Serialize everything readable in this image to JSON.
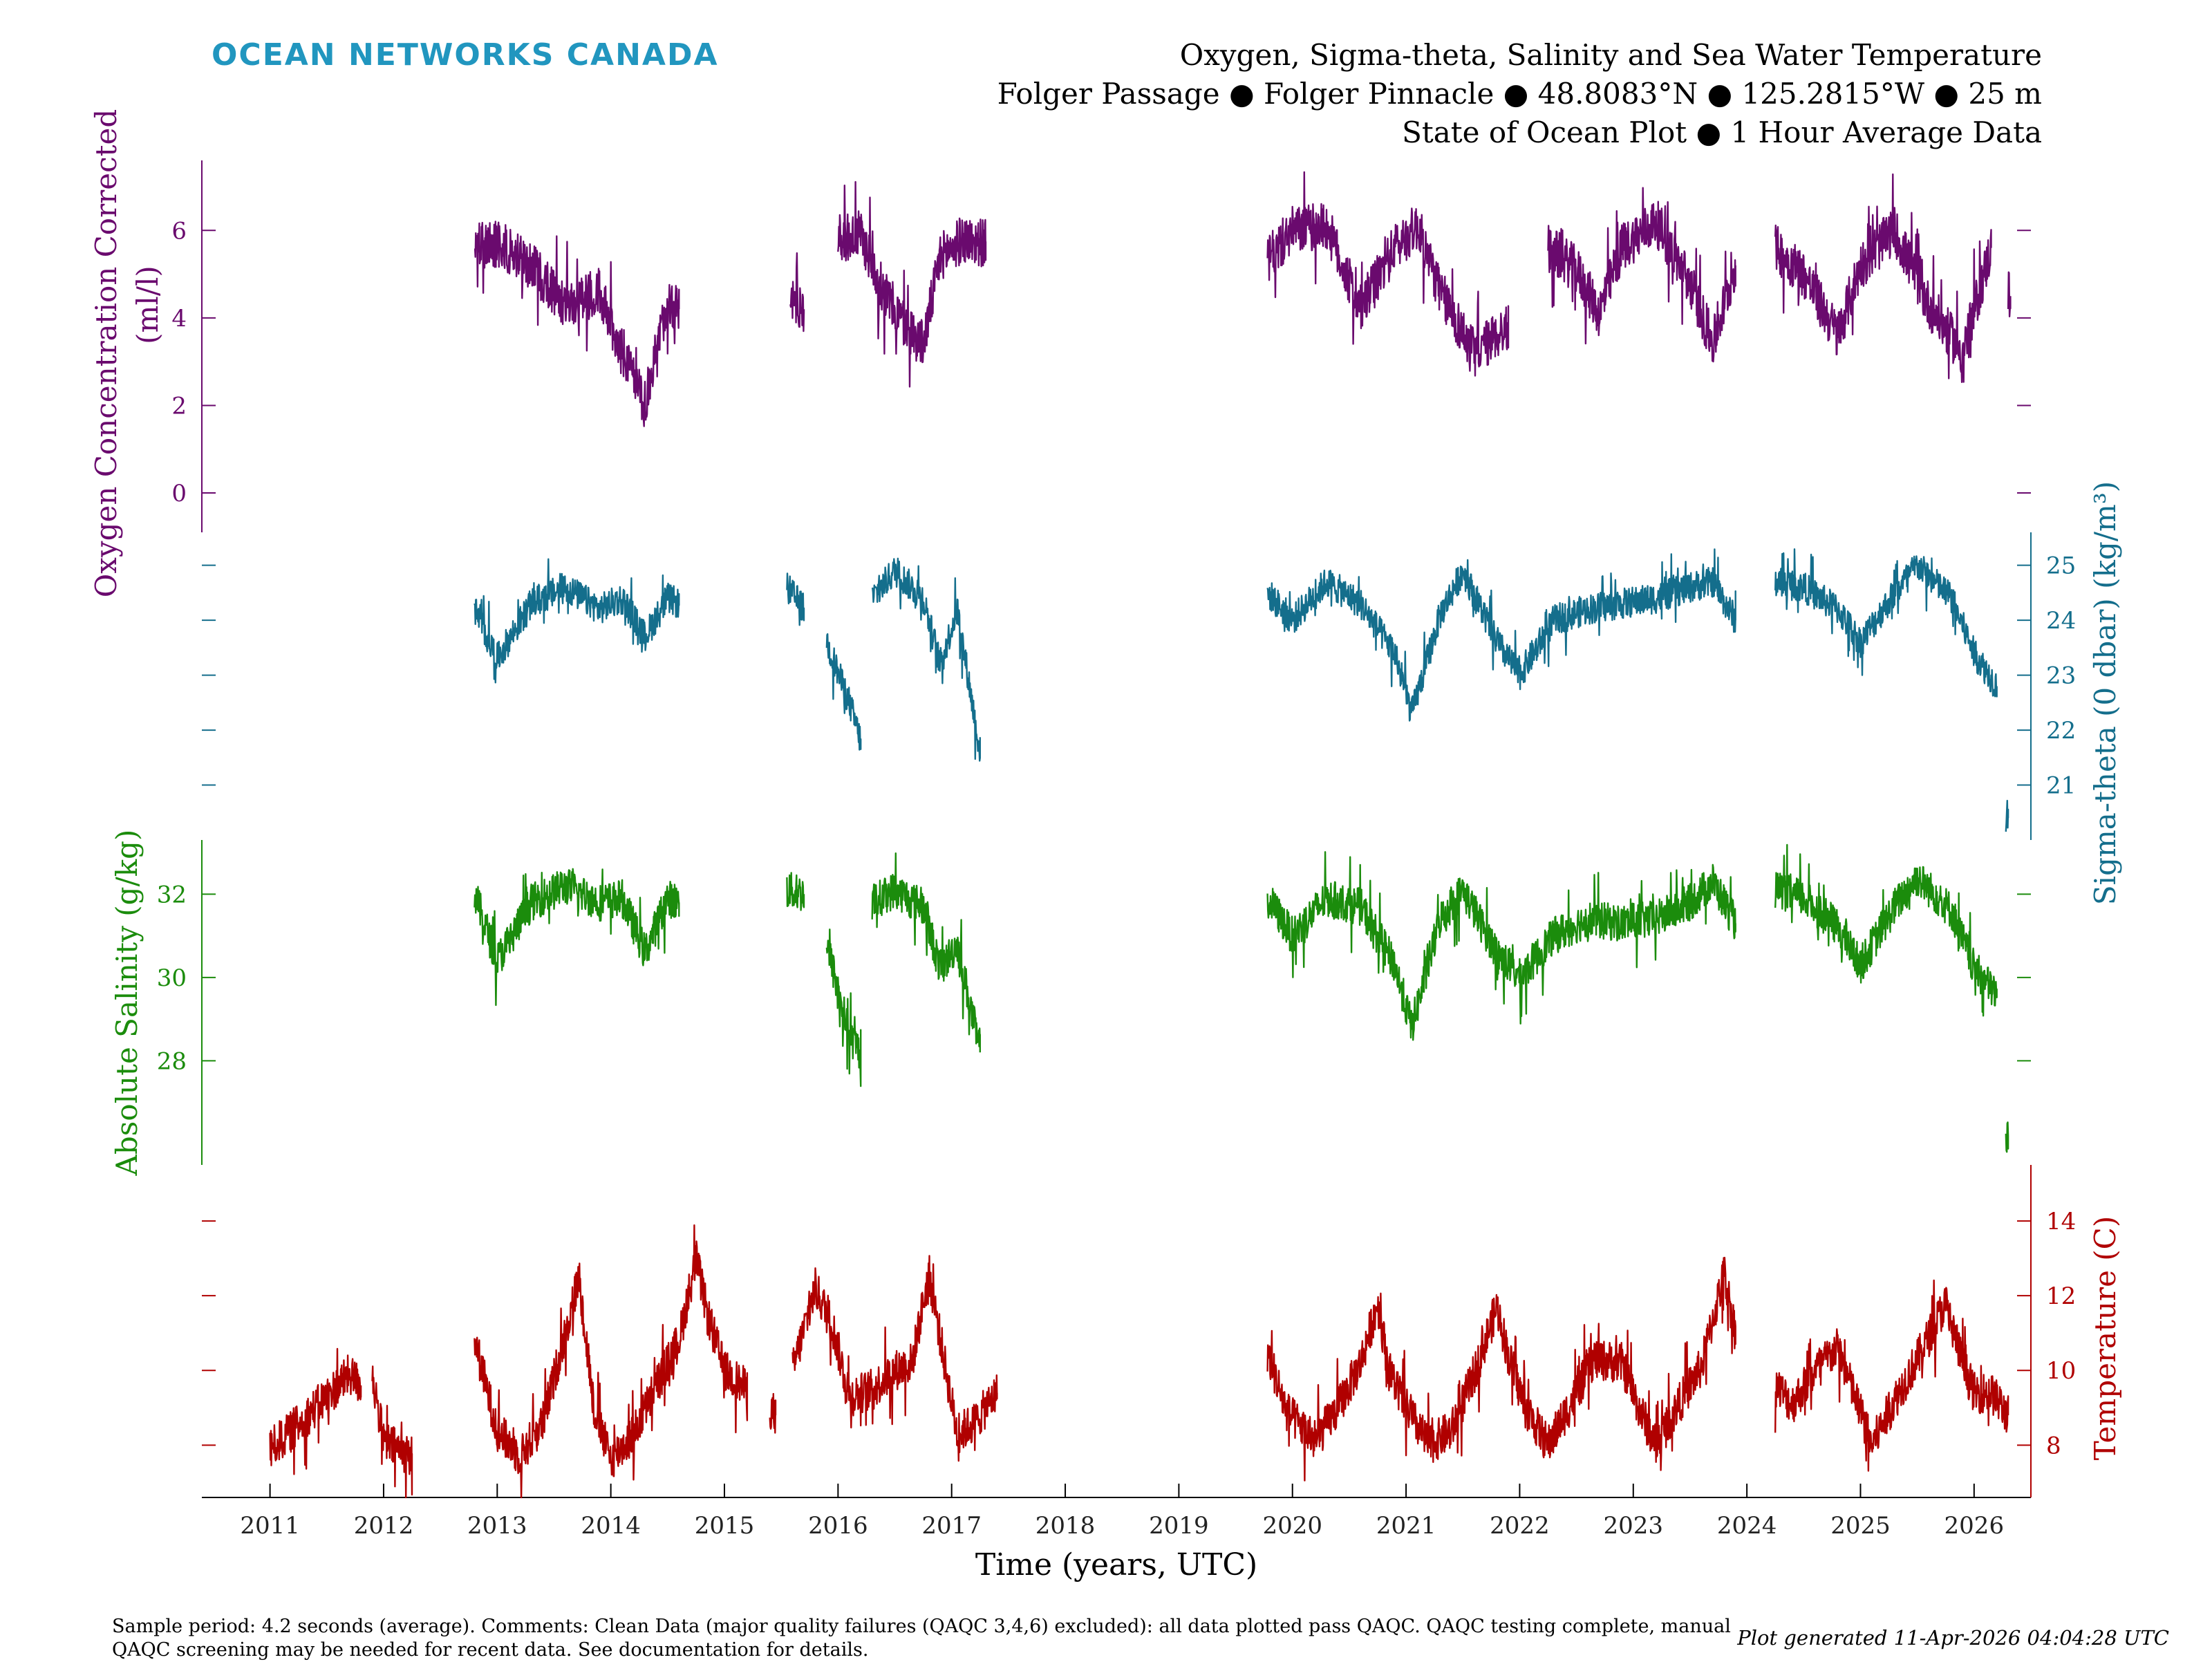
{
  "brand": {
    "logo_text": "OCEAN NETWORKS CANADA",
    "logo_color": "#2196bf"
  },
  "header": {
    "title_line1": "Oxygen, Sigma-theta, Salinity and Sea Water Temperature",
    "title_line2": "Folger Passage ● Folger Pinnacle ● 48.8083°N ● 125.2815°W ● 25 m",
    "title_line3": "State of Ocean Plot ● 1 Hour Average Data"
  },
  "footer": {
    "comments": "Sample period: 4.2 seconds (average). Comments: Clean Data (major quality failures (QAQC 3,4,6) excluded): all data plotted pass QAQC. QAQC testing complete, manual QAQC screening may be needed for recent data. See documentation for details.",
    "generated": "Plot generated 11-Apr-2026 04:04:28 UTC"
  },
  "chart_data": {
    "type": "line",
    "xlabel": "Time (years, UTC)",
    "xlim": [
      2010.4,
      2026.5
    ],
    "x_ticks": [
      "2011",
      "2012",
      "2013",
      "2014",
      "2015",
      "2016",
      "2017",
      "2018",
      "2019",
      "2020",
      "2021",
      "2022",
      "2023",
      "2024",
      "2025",
      "2026"
    ],
    "x_tick_values": [
      2011,
      2012,
      2013,
      2014,
      2015,
      2016,
      2017,
      2018,
      2019,
      2020,
      2021,
      2022,
      2023,
      2024,
      2025,
      2026
    ],
    "series": [
      {
        "name": "Oxygen Concentration Corrected",
        "ylabel_line1": "Oxygen Concentration Corrected",
        "ylabel_line2": "(ml/l)",
        "color": "#6a0a6e",
        "axis_side": "left",
        "ylim": [
          -0.9,
          7.6
        ],
        "ticks": [
          "0",
          "2",
          "4",
          "6"
        ],
        "tick_values": [
          0,
          2,
          4,
          6
        ],
        "noise": 0.55,
        "points": [
          [
            2012.8,
            5.6
          ],
          [
            2013.0,
            5.7
          ],
          [
            2013.3,
            5.2
          ],
          [
            2013.6,
            4.3
          ],
          [
            2013.9,
            4.6
          ],
          [
            2014.1,
            3.2
          ],
          [
            2014.3,
            2.0
          ],
          [
            2014.5,
            4.4
          ],
          [
            2014.6,
            4.2
          ],
          [
            null,
            null
          ],
          [
            2015.58,
            4.5
          ],
          [
            2015.7,
            4.2
          ],
          [
            null,
            null
          ],
          [
            2016.0,
            5.8
          ],
          [
            2016.2,
            5.9
          ],
          [
            2016.4,
            4.6
          ],
          [
            2016.6,
            3.8
          ],
          [
            2016.75,
            3.4
          ],
          [
            2016.9,
            5.4
          ],
          [
            2017.1,
            5.8
          ],
          [
            2017.3,
            5.7
          ],
          [
            null,
            null
          ],
          [
            2019.78,
            5.3
          ],
          [
            2020.0,
            6.0
          ],
          [
            2020.3,
            6.1
          ],
          [
            2020.6,
            4.2
          ],
          [
            2020.9,
            5.6
          ],
          [
            2021.1,
            6.1
          ],
          [
            2021.3,
            4.6
          ],
          [
            2021.6,
            3.2
          ],
          [
            2021.9,
            3.8
          ],
          [
            null,
            null
          ],
          [
            2022.25,
            5.6
          ],
          [
            2022.5,
            5.1
          ],
          [
            2022.7,
            4.1
          ],
          [
            2022.9,
            5.6
          ],
          [
            2023.2,
            6.2
          ],
          [
            2023.5,
            4.8
          ],
          [
            2023.7,
            3.4
          ],
          [
            2023.9,
            5.2
          ],
          [
            null,
            null
          ],
          [
            2024.25,
            5.6
          ],
          [
            2024.5,
            5.0
          ],
          [
            2024.8,
            3.6
          ],
          [
            2025.0,
            5.2
          ],
          [
            2025.3,
            6.0
          ],
          [
            2025.6,
            4.3
          ],
          [
            2025.9,
            3.2
          ],
          [
            2026.15,
            5.6
          ],
          [
            null,
            null
          ],
          [
            2026.3,
            4.6
          ],
          [
            2026.32,
            4.5
          ]
        ]
      },
      {
        "name": "Sigma-theta",
        "ylabel_line1": "Sigma-theta (0 dbar) (kg/m³)",
        "color": "#146e8c",
        "axis_side": "right",
        "ylim": [
          20.0,
          25.6
        ],
        "ticks": [
          "21",
          "22",
          "23",
          "24",
          "25"
        ],
        "tick_values": [
          21,
          22,
          23,
          24,
          25
        ],
        "noise": 0.28,
        "points": [
          [
            2012.8,
            24.2
          ],
          [
            2013.0,
            23.3
          ],
          [
            2013.3,
            24.3
          ],
          [
            2013.6,
            24.6
          ],
          [
            2013.9,
            24.2
          ],
          [
            2014.1,
            24.4
          ],
          [
            2014.3,
            23.7
          ],
          [
            2014.5,
            24.4
          ],
          [
            2014.6,
            24.3
          ],
          [
            null,
            null
          ],
          [
            2015.55,
            24.6
          ],
          [
            2015.7,
            24.2
          ],
          [
            null,
            null
          ],
          [
            2015.9,
            23.6
          ],
          [
            2016.1,
            22.5
          ],
          [
            2016.2,
            21.8
          ],
          [
            null,
            null
          ],
          [
            2016.3,
            24.4
          ],
          [
            2016.5,
            24.9
          ],
          [
            2016.75,
            24.4
          ],
          [
            2016.9,
            23.2
          ],
          [
            2017.05,
            24.2
          ],
          [
            2017.25,
            21.6
          ],
          [
            null,
            null
          ],
          [
            2019.78,
            24.5
          ],
          [
            2020.0,
            24.0
          ],
          [
            2020.3,
            24.7
          ],
          [
            2020.6,
            24.3
          ],
          [
            2020.9,
            23.4
          ],
          [
            2021.05,
            22.3
          ],
          [
            2021.3,
            24.1
          ],
          [
            2021.5,
            24.9
          ],
          [
            2021.8,
            23.6
          ],
          [
            2022.0,
            23.0
          ],
          [
            2022.3,
            24.0
          ],
          [
            2022.6,
            24.2
          ],
          [
            2022.9,
            24.3
          ],
          [
            2023.2,
            24.4
          ],
          [
            2023.5,
            24.6
          ],
          [
            2023.7,
            24.7
          ],
          [
            2023.9,
            24.0
          ],
          [
            null,
            null
          ],
          [
            2024.25,
            24.7
          ],
          [
            2024.5,
            24.6
          ],
          [
            2024.8,
            24.2
          ],
          [
            2025.0,
            23.6
          ],
          [
            2025.3,
            24.5
          ],
          [
            2025.5,
            25.0
          ],
          [
            2025.8,
            24.4
          ],
          [
            2026.0,
            23.4
          ],
          [
            2026.2,
            22.8
          ],
          [
            null,
            null
          ],
          [
            2026.28,
            20.4
          ],
          [
            2026.3,
            20.5
          ]
        ]
      },
      {
        "name": "Absolute Salinity",
        "ylabel_line1": "Absolute Salinity (g/kg)",
        "color": "#1b8c0c",
        "axis_side": "left",
        "ylim": [
          25.5,
          33.3
        ],
        "ticks": [
          "28",
          "30",
          "32"
        ],
        "tick_values": [
          28,
          30,
          32
        ],
        "noise": 0.45,
        "points": [
          [
            2012.8,
            32.0
          ],
          [
            2013.0,
            30.4
          ],
          [
            2013.3,
            31.8
          ],
          [
            2013.6,
            32.2
          ],
          [
            2013.9,
            31.8
          ],
          [
            2014.1,
            31.9
          ],
          [
            2014.3,
            30.6
          ],
          [
            2014.5,
            31.9
          ],
          [
            2014.6,
            31.8
          ],
          [
            null,
            null
          ],
          [
            2015.55,
            32.1
          ],
          [
            2015.7,
            32.0
          ],
          [
            null,
            null
          ],
          [
            2015.9,
            30.8
          ],
          [
            2016.1,
            28.6
          ],
          [
            2016.2,
            28.2
          ],
          [
            null,
            null
          ],
          [
            2016.3,
            31.8
          ],
          [
            2016.5,
            32.1
          ],
          [
            2016.75,
            31.7
          ],
          [
            2016.9,
            30.2
          ],
          [
            2017.05,
            30.8
          ],
          [
            2017.25,
            28.2
          ],
          [
            null,
            null
          ],
          [
            2019.78,
            31.9
          ],
          [
            2020.0,
            31.0
          ],
          [
            2020.3,
            31.9
          ],
          [
            2020.6,
            31.7
          ],
          [
            2020.9,
            30.3
          ],
          [
            2021.05,
            28.8
          ],
          [
            2021.3,
            31.4
          ],
          [
            2021.5,
            32.1
          ],
          [
            2021.8,
            30.6
          ],
          [
            2022.0,
            30.0
          ],
          [
            2022.3,
            31.0
          ],
          [
            2022.6,
            31.4
          ],
          [
            2022.9,
            31.3
          ],
          [
            2023.2,
            31.4
          ],
          [
            2023.5,
            31.8
          ],
          [
            2023.7,
            32.3
          ],
          [
            2023.9,
            31.3
          ],
          [
            null,
            null
          ],
          [
            2024.25,
            32.1
          ],
          [
            2024.5,
            31.9
          ],
          [
            2024.8,
            31.2
          ],
          [
            2025.0,
            30.3
          ],
          [
            2025.3,
            31.7
          ],
          [
            2025.5,
            32.4
          ],
          [
            2025.8,
            31.6
          ],
          [
            2026.0,
            30.2
          ],
          [
            2026.2,
            29.6
          ],
          [
            null,
            null
          ],
          [
            2026.28,
            26.1
          ],
          [
            2026.3,
            26.2
          ]
        ]
      },
      {
        "name": "Temperature",
        "ylabel_line1": "Temperature (C)",
        "color": "#b00000",
        "axis_side": "right",
        "ylim": [
          6.6,
          15.5
        ],
        "ticks": [
          "8",
          "10",
          "12",
          "14"
        ],
        "tick_values": [
          8,
          10,
          12,
          14
        ],
        "noise": 0.55,
        "points": [
          [
            2011.0,
            7.9
          ],
          [
            2011.2,
            8.4
          ],
          [
            2011.4,
            9.0
          ],
          [
            2011.7,
            9.9
          ],
          [
            2011.8,
            9.6
          ],
          [
            null,
            null
          ],
          [
            2011.9,
            9.9
          ],
          [
            2012.0,
            8.1
          ],
          [
            2012.25,
            7.7
          ],
          [
            null,
            null
          ],
          [
            2012.8,
            10.8
          ],
          [
            2013.0,
            8.4
          ],
          [
            2013.2,
            7.7
          ],
          [
            2013.4,
            8.6
          ],
          [
            2013.6,
            11.0
          ],
          [
            2013.72,
            12.5
          ],
          [
            2013.85,
            9.0
          ],
          [
            2014.0,
            7.6
          ],
          [
            2014.2,
            8.3
          ],
          [
            2014.4,
            9.6
          ],
          [
            2014.6,
            10.8
          ],
          [
            2014.75,
            13.0
          ],
          [
            2014.85,
            11.5
          ],
          [
            2015.0,
            10.0
          ],
          [
            2015.2,
            9.5
          ],
          [
            null,
            null
          ],
          [
            2015.4,
            9.0
          ],
          [
            2015.45,
            8.8
          ],
          [
            null,
            null
          ],
          [
            2015.6,
            10.0
          ],
          [
            2015.8,
            12.2
          ],
          [
            2015.95,
            11.2
          ],
          [
            2016.1,
            9.3
          ],
          [
            2016.3,
            9.5
          ],
          [
            2016.5,
            10.0
          ],
          [
            2016.65,
            10.2
          ],
          [
            2016.8,
            12.6
          ],
          [
            2016.95,
            10.0
          ],
          [
            2017.05,
            8.3
          ],
          [
            2017.2,
            8.6
          ],
          [
            2017.4,
            9.4
          ],
          [
            null,
            null
          ],
          [
            2019.78,
            10.5
          ],
          [
            2019.95,
            8.9
          ],
          [
            2020.2,
            8.1
          ],
          [
            2020.4,
            9.0
          ],
          [
            2020.6,
            10.2
          ],
          [
            2020.75,
            11.8
          ],
          [
            2020.85,
            10.0
          ],
          [
            2021.0,
            9.0
          ],
          [
            2021.2,
            8.0
          ],
          [
            2021.4,
            8.4
          ],
          [
            2021.6,
            9.9
          ],
          [
            2021.8,
            11.7
          ],
          [
            2021.9,
            10.4
          ],
          [
            2022.05,
            9.0
          ],
          [
            2022.25,
            8.0
          ],
          [
            2022.45,
            9.1
          ],
          [
            2022.65,
            10.3
          ],
          [
            2022.9,
            10.2
          ],
          [
            2023.05,
            9.0
          ],
          [
            2023.2,
            8.0
          ],
          [
            2023.4,
            9.1
          ],
          [
            2023.6,
            10.1
          ],
          [
            2023.8,
            12.6
          ],
          [
            2023.9,
            11.0
          ],
          [
            null,
            null
          ],
          [
            2024.25,
            9.6
          ],
          [
            2024.4,
            9.1
          ],
          [
            2024.6,
            10.0
          ],
          [
            2024.8,
            10.6
          ],
          [
            2024.95,
            9.3
          ],
          [
            2025.1,
            8.0
          ],
          [
            2025.3,
            9.2
          ],
          [
            2025.5,
            10.3
          ],
          [
            2025.75,
            11.8
          ],
          [
            2025.9,
            10.2
          ],
          [
            2026.0,
            9.4
          ],
          [
            2026.15,
            9.4
          ],
          [
            2026.3,
            8.8
          ]
        ]
      }
    ]
  }
}
